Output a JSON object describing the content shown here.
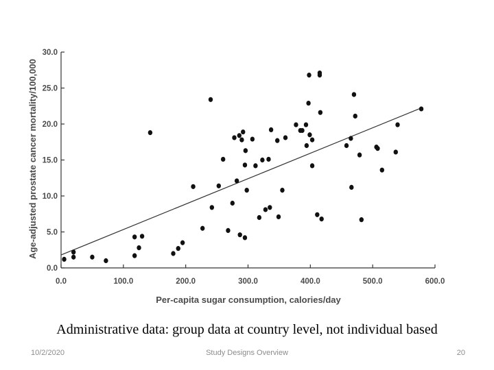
{
  "chart_data": {
    "type": "scatter",
    "xlabel": "Per-capita sugar consumption, calories/day",
    "ylabel": "Age-adjusted prostate cancer mortality/100,000",
    "xlim": [
      0,
      600
    ],
    "ylim": [
      0,
      30
    ],
    "xticks": [
      "0.0",
      "100.0",
      "200.0",
      "300.0",
      "400.0",
      "500.0",
      "600.0"
    ],
    "yticks": [
      "0.0",
      "5.0",
      "10.0",
      "15.0",
      "20.0",
      "25.0",
      "30.0"
    ],
    "trendline": {
      "x": [
        0,
        580
      ],
      "y": [
        1.8,
        22.3
      ]
    },
    "grid": false,
    "points": [
      [
        5,
        1.2
      ],
      [
        20,
        1.5
      ],
      [
        20,
        2.2
      ],
      [
        50,
        1.5
      ],
      [
        72,
        1.0
      ],
      [
        118,
        1.7
      ],
      [
        118,
        4.3
      ],
      [
        125,
        2.8
      ],
      [
        130,
        4.4
      ],
      [
        143,
        18.8
      ],
      [
        180,
        2.0
      ],
      [
        188,
        2.7
      ],
      [
        195,
        3.5
      ],
      [
        212,
        11.3
      ],
      [
        227,
        5.5
      ],
      [
        240,
        23.4
      ],
      [
        242,
        8.4
      ],
      [
        253,
        11.4
      ],
      [
        260,
        15.1
      ],
      [
        268,
        5.2
      ],
      [
        275,
        9.0
      ],
      [
        278,
        18.1
      ],
      [
        282,
        12.1
      ],
      [
        286,
        18.4
      ],
      [
        287,
        4.6
      ],
      [
        290,
        17.8
      ],
      [
        292,
        18.9
      ],
      [
        295,
        14.3
      ],
      [
        295,
        4.2
      ],
      [
        296,
        16.3
      ],
      [
        298,
        10.8
      ],
      [
        307,
        17.9
      ],
      [
        312,
        14.2
      ],
      [
        318,
        7.0
      ],
      [
        323,
        15.0
      ],
      [
        328,
        8.1
      ],
      [
        333,
        15.1
      ],
      [
        335,
        8.4
      ],
      [
        337,
        19.2
      ],
      [
        347,
        17.7
      ],
      [
        349,
        7.1
      ],
      [
        355,
        10.8
      ],
      [
        360,
        18.1
      ],
      [
        377,
        19.9
      ],
      [
        384,
        19.1
      ],
      [
        387,
        19.1
      ],
      [
        393,
        19.9
      ],
      [
        394,
        17.0
      ],
      [
        397,
        22.9
      ],
      [
        399,
        18.5
      ],
      [
        398,
        26.8
      ],
      [
        403,
        17.8
      ],
      [
        403,
        14.2
      ],
      [
        411,
        7.4
      ],
      [
        415,
        27.1
      ],
      [
        415,
        26.8
      ],
      [
        416,
        21.6
      ],
      [
        418,
        6.8
      ],
      [
        458,
        17.0
      ],
      [
        465,
        18.0
      ],
      [
        466,
        11.2
      ],
      [
        470,
        24.1
      ],
      [
        472,
        21.1
      ],
      [
        479,
        15.7
      ],
      [
        482,
        6.7
      ],
      [
        506,
        16.8
      ],
      [
        508,
        16.6
      ],
      [
        515,
        13.6
      ],
      [
        537,
        16.1
      ],
      [
        540,
        19.9
      ],
      [
        578,
        22.1
      ]
    ]
  },
  "caption": "Administrative data: group data at country level, not individual based",
  "footer": {
    "date": "10/2/2020",
    "title": "Study Designs Overview",
    "page": "20"
  }
}
